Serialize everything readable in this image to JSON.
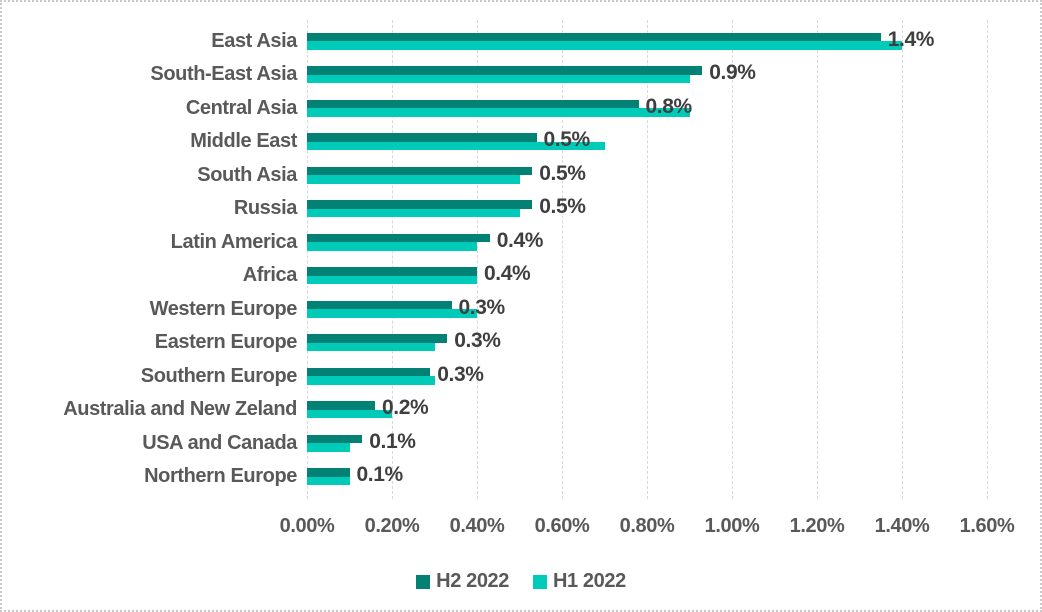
{
  "chart_data": {
    "type": "bar",
    "orientation": "horizontal",
    "title": "",
    "categories": [
      "East Asia",
      "South-East Asia",
      "Central Asia",
      "Middle East",
      "South Asia",
      "Russia",
      "Latin America",
      "Africa",
      "Western Europe",
      "Eastern Europe",
      "Southern Europe",
      "Australia and New Zeland",
      "USA and Canada",
      "Northern Europe"
    ],
    "series": [
      {
        "name": "H2 2022",
        "color": "#028174",
        "values": [
          1.35,
          0.93,
          0.78,
          0.54,
          0.53,
          0.53,
          0.43,
          0.4,
          0.34,
          0.33,
          0.29,
          0.16,
          0.13,
          0.1
        ]
      },
      {
        "name": "H1 2022",
        "color": "#00CBB9",
        "values": [
          1.4,
          0.9,
          0.9,
          0.7,
          0.5,
          0.5,
          0.4,
          0.4,
          0.4,
          0.3,
          0.3,
          0.2,
          0.1,
          0.1
        ]
      }
    ],
    "data_labels": [
      "1.4%",
      "0.9%",
      "0.8%",
      "0.5%",
      "0.5%",
      "0.5%",
      "0.4%",
      "0.4%",
      "0.3%",
      "0.3%",
      "0.3%",
      "0.2%",
      "0.1%",
      "0.1%"
    ],
    "data_labels_series": "H2 2022",
    "x_axis": {
      "ticks": [
        "0.00%",
        "0.20%",
        "0.40%",
        "0.60%",
        "0.80%",
        "1.00%",
        "1.20%",
        "1.40%",
        "1.60%"
      ],
      "min": 0,
      "max": 1.6,
      "unit": "%"
    },
    "grid": true,
    "legend_position": "bottom-center"
  },
  "colors": {
    "h2_2022": "#028174",
    "h1_2022": "#00CBB9",
    "axis_text": "#595959",
    "data_label_text": "#3f3f3f",
    "gridline": "#d8d8d8",
    "frame_border": "#c9c9c9",
    "background": "#ffffff"
  }
}
